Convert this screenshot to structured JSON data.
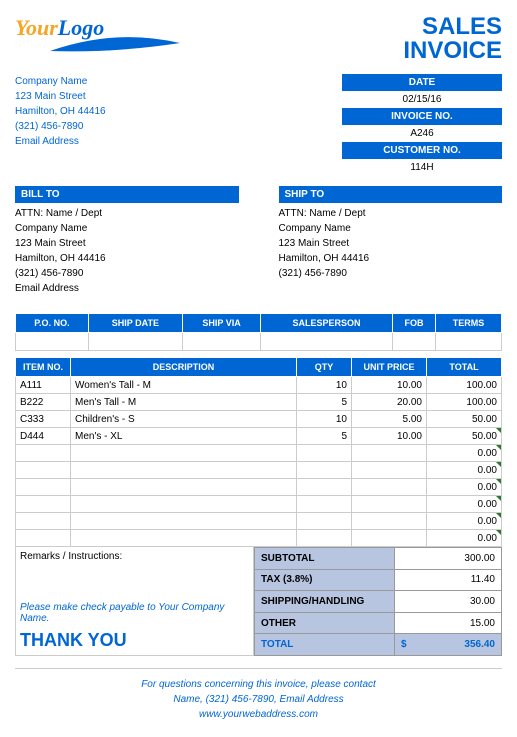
{
  "logo": {
    "part1": "Your",
    "part2": "Logo"
  },
  "title": {
    "line1": "SALES",
    "line2": "INVOICE"
  },
  "company": {
    "name": "Company Name",
    "street": "123 Main Street",
    "citystate": "Hamilton, OH  44416",
    "phone": "(321) 456-7890",
    "email": "Email Address"
  },
  "meta": {
    "date_label": "DATE",
    "date": "02/15/16",
    "invno_label": "INVOICE NO.",
    "invno": "A246",
    "custno_label": "CUSTOMER NO.",
    "custno": "114H"
  },
  "billto": {
    "header": "BILL TO",
    "attn": "ATTN: Name / Dept",
    "name": "Company Name",
    "street": "123 Main Street",
    "citystate": "Hamilton, OH  44416",
    "phone": "(321) 456-7890",
    "email": "Email Address"
  },
  "shipto": {
    "header": "SHIP TO",
    "attn": "ATTN: Name / Dept",
    "name": "Company Name",
    "street": "123 Main Street",
    "citystate": "Hamilton, OH  44416",
    "phone": "(321) 456-7890"
  },
  "detail_headers": {
    "po": "P.O. NO.",
    "shipdate": "SHIP DATE",
    "shipvia": "SHIP VIA",
    "salesperson": "SALESPERSON",
    "fob": "FOB",
    "terms": "TERMS"
  },
  "item_headers": {
    "itemno": "ITEM NO.",
    "desc": "DESCRIPTION",
    "qty": "QTY",
    "price": "UNIT PRICE",
    "total": "TOTAL"
  },
  "items": [
    {
      "no": "A111",
      "desc": "Women's Tall - M",
      "qty": "10",
      "price": "10.00",
      "total": "100.00"
    },
    {
      "no": "B222",
      "desc": "Men's Tall - M",
      "qty": "5",
      "price": "20.00",
      "total": "100.00"
    },
    {
      "no": "C333",
      "desc": "Children's - S",
      "qty": "10",
      "price": "5.00",
      "total": "50.00"
    },
    {
      "no": "D444",
      "desc": "Men's - XL",
      "qty": "5",
      "price": "10.00",
      "total": "50.00"
    }
  ],
  "empty_totals": [
    "0.00",
    "0.00",
    "0.00",
    "0.00",
    "0.00",
    "0.00"
  ],
  "remarks_label": "Remarks / Instructions:",
  "totals": {
    "subtotal_label": "SUBTOTAL",
    "subtotal": "300.00",
    "tax_label": "TAX (3.8%)",
    "tax": "11.40",
    "shipping_label": "SHIPPING/HANDLING",
    "shipping": "30.00",
    "other_label": "OTHER",
    "other": "15.00",
    "total_label": "TOTAL",
    "dollar": "$",
    "total": "356.40"
  },
  "payable": "Please make check payable to Your Company Name.",
  "thanks": "THANK YOU",
  "footer": {
    "line1": "For questions concerning this invoice, please contact",
    "line2": "Name, (321) 456-7890, Email Address",
    "url": "www.yourwebaddress.com"
  },
  "colors": {
    "primary": "#0066d4",
    "accent": "#f5a623",
    "totalsbg": "#b8c5e0"
  }
}
